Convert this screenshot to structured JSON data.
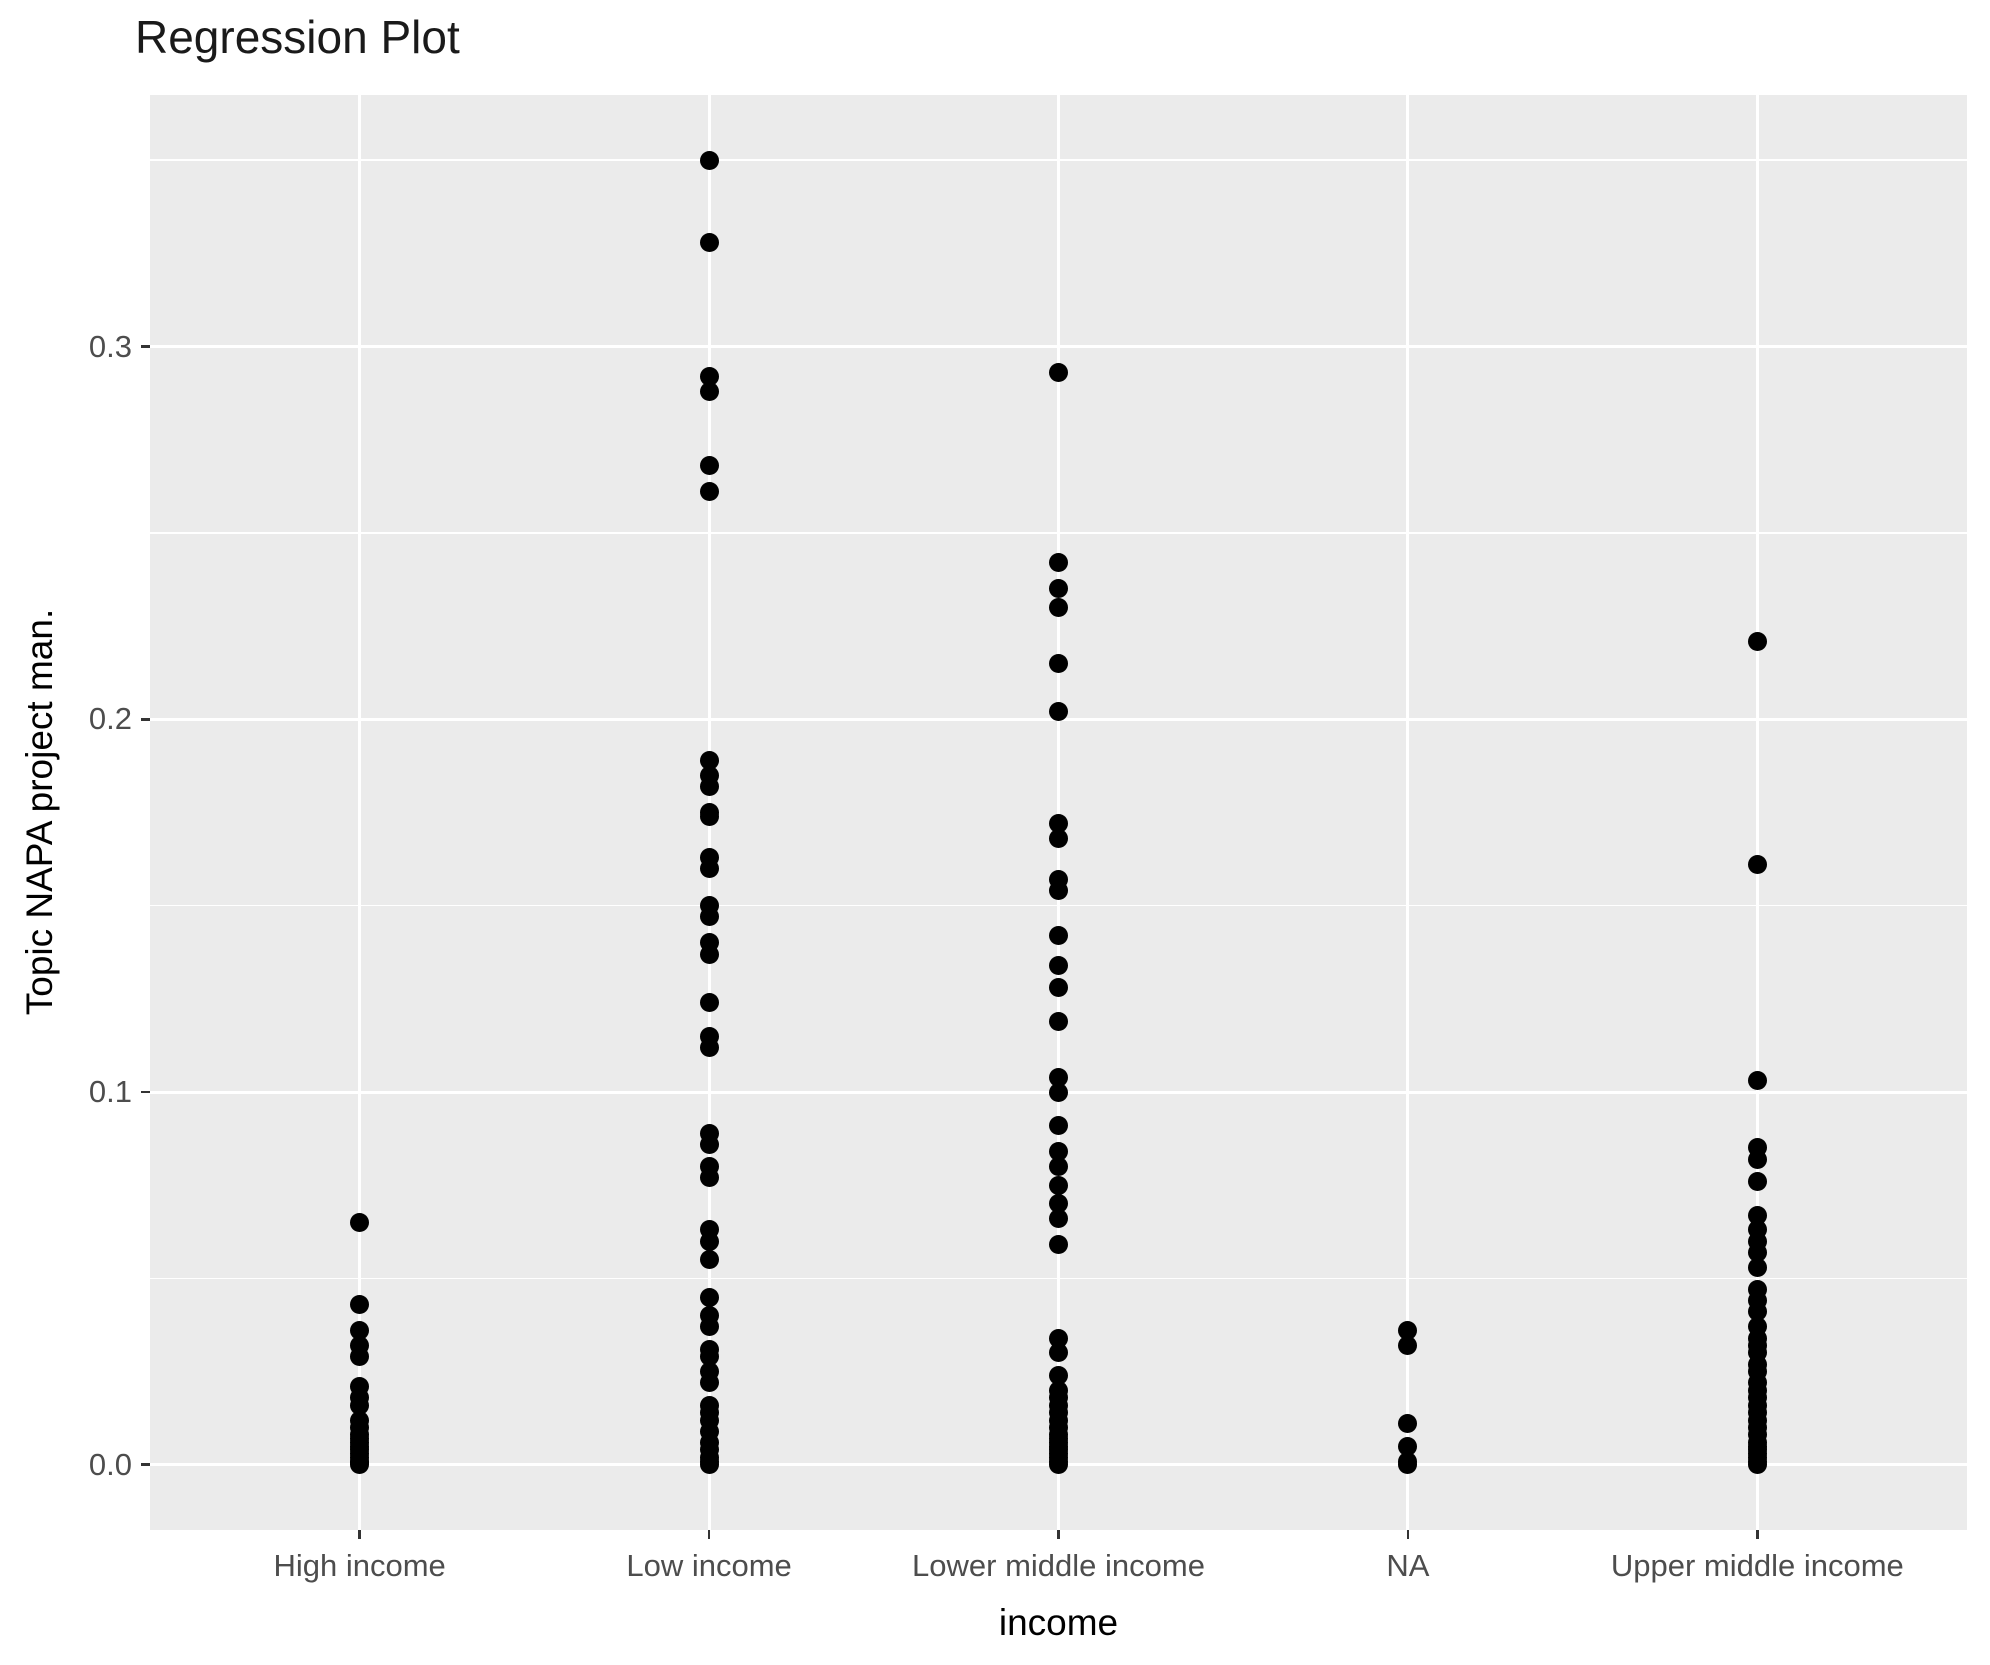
{
  "title": "Regression Plot",
  "colors": {
    "background": "#ffffff",
    "panel_background": "#ebebeb",
    "gridline": "#ffffff",
    "point": "#000000",
    "tick_text": "#4d4d4d",
    "axis_title_text": "#000000",
    "title_text": "#1a1a1a"
  },
  "chart_data": {
    "type": "scatter",
    "title": "Regression Plot",
    "xlabel": "income",
    "ylabel": "Topic NAPA project man.",
    "legend": "none",
    "grid": "white major+minor horizontal lines, white major vertical lines at category centers, gray panel",
    "ylim": [
      -0.0175,
      0.3675
    ],
    "y_ticks_major": [
      0.0,
      0.1,
      0.2,
      0.3
    ],
    "y_tick_labels": [
      "0.0",
      "0.1",
      "0.2",
      "0.3"
    ],
    "y_ticks_minor": [
      0.05,
      0.15,
      0.25,
      0.35
    ],
    "categories": [
      "High income",
      "Low income",
      "Lower middle income",
      "NA",
      "Upper middle income"
    ],
    "series": [
      {
        "name": "High income",
        "values": [
          0.065,
          0.043,
          0.036,
          0.032,
          0.029,
          0.021,
          0.018,
          0.016,
          0.012,
          0.01,
          0.008,
          0.007,
          0.006,
          0.005,
          0.004,
          0.003,
          0.002,
          0.001,
          0.0005,
          0.0
        ]
      },
      {
        "name": "Low income",
        "values": [
          0.35,
          0.328,
          0.292,
          0.288,
          0.268,
          0.261,
          0.189,
          0.185,
          0.182,
          0.175,
          0.174,
          0.163,
          0.16,
          0.15,
          0.147,
          0.14,
          0.137,
          0.124,
          0.115,
          0.112,
          0.089,
          0.086,
          0.08,
          0.077,
          0.063,
          0.06,
          0.055,
          0.045,
          0.04,
          0.037,
          0.031,
          0.029,
          0.025,
          0.022,
          0.016,
          0.014,
          0.012,
          0.009,
          0.006,
          0.004,
          0.002,
          0.001,
          0.0
        ]
      },
      {
        "name": "Lower middle income",
        "values": [
          0.293,
          0.242,
          0.235,
          0.23,
          0.215,
          0.202,
          0.172,
          0.168,
          0.157,
          0.154,
          0.142,
          0.134,
          0.128,
          0.119,
          0.104,
          0.1,
          0.091,
          0.084,
          0.08,
          0.075,
          0.07,
          0.066,
          0.059,
          0.034,
          0.03,
          0.024,
          0.02,
          0.018,
          0.016,
          0.014,
          0.012,
          0.01,
          0.008,
          0.007,
          0.006,
          0.005,
          0.004,
          0.003,
          0.002,
          0.001,
          0.0
        ]
      },
      {
        "name": "NA",
        "values": [
          0.036,
          0.032,
          0.011,
          0.005,
          0.001,
          0.0
        ]
      },
      {
        "name": "Upper middle income",
        "values": [
          0.221,
          0.161,
          0.103,
          0.085,
          0.082,
          0.076,
          0.067,
          0.063,
          0.06,
          0.057,
          0.053,
          0.047,
          0.044,
          0.041,
          0.037,
          0.034,
          0.032,
          0.03,
          0.027,
          0.025,
          0.022,
          0.02,
          0.018,
          0.016,
          0.014,
          0.012,
          0.01,
          0.008,
          0.006,
          0.005,
          0.004,
          0.003,
          0.002,
          0.001,
          0.0
        ]
      }
    ]
  }
}
